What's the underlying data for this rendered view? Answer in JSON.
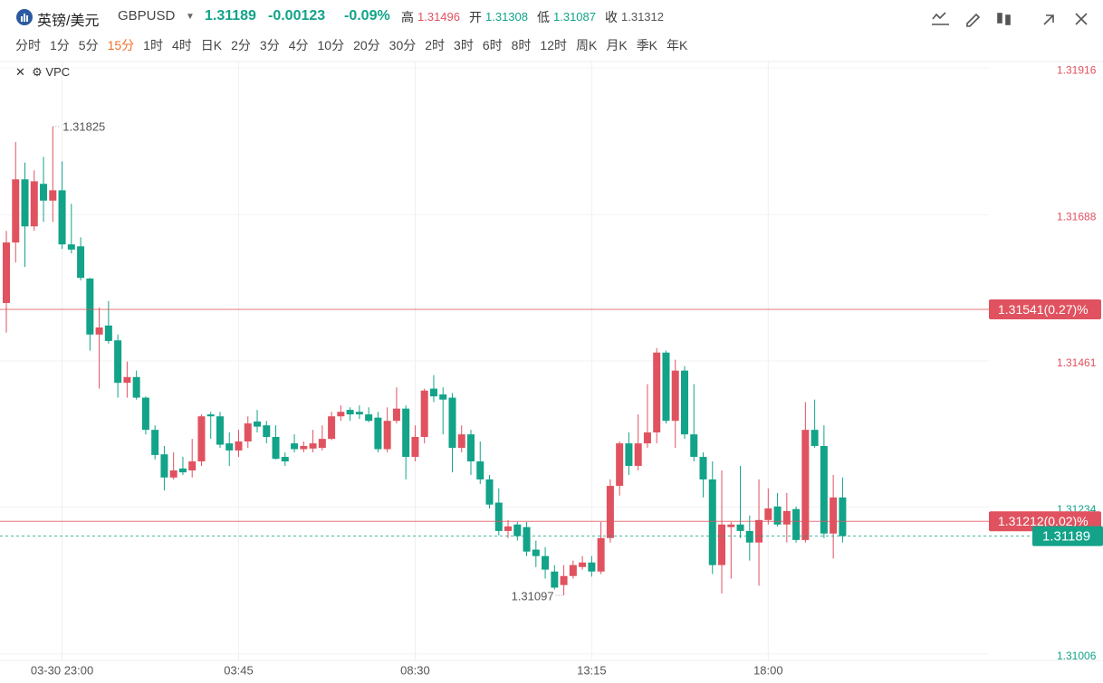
{
  "header": {
    "symbol": "英镑/美元",
    "code": "GBPUSD",
    "price": "1.31189",
    "change": "-0.00123",
    "change_pct": "-0.09%",
    "stats": [
      {
        "label": "高",
        "value": "1.31496",
        "color": "#e0525f"
      },
      {
        "label": "开",
        "value": "1.31308",
        "color": "#12a389"
      },
      {
        "label": "低",
        "value": "1.31087",
        "color": "#12a389"
      },
      {
        "label": "收",
        "value": "1.31312",
        "color": "#555555"
      }
    ]
  },
  "periods": [
    "分时",
    "1分",
    "5分",
    "15分",
    "1时",
    "4时",
    "日K",
    "2分",
    "3分",
    "4分",
    "10分",
    "20分",
    "30分",
    "2时",
    "3时",
    "6时",
    "8时",
    "12时",
    "周K",
    "月K",
    "季K",
    "年K"
  ],
  "active_period": 3,
  "indicator": "VPC",
  "chart_data": {
    "type": "candlestick",
    "up_color": "#e0525f",
    "down_color": "#12a389",
    "categories": [
      null,
      null,
      null,
      null,
      null,
      null,
      "03-30 23:00",
      null,
      null,
      null,
      null,
      null,
      null,
      null,
      null,
      null,
      null,
      null,
      null,
      null,
      null,
      null,
      null,
      null,
      null,
      "03:45",
      null,
      null,
      null,
      null,
      null,
      null,
      null,
      null,
      null,
      null,
      null,
      null,
      null,
      null,
      null,
      null,
      null,
      null,
      "08:30",
      null,
      null,
      null,
      null,
      null,
      null,
      null,
      null,
      null,
      null,
      null,
      null,
      null,
      null,
      null,
      null,
      null,
      null,
      "13:15",
      null,
      null,
      null,
      null,
      null,
      null,
      null,
      null,
      null,
      null,
      null,
      null,
      null,
      null,
      null,
      null,
      null,
      null,
      "18:00",
      null,
      null,
      null,
      null,
      null,
      null,
      null,
      null
    ],
    "open": [
      1.31551,
      1.31645,
      1.31743,
      1.3167,
      1.31736,
      1.3171,
      1.31726,
      1.31642,
      1.31639,
      1.31589,
      1.31502,
      1.31516,
      1.31493,
      1.31427,
      1.31436,
      1.31404,
      1.31354,
      1.31316,
      1.3128,
      1.31294,
      1.31291,
      1.31305,
      1.31378,
      1.31375,
      1.31333,
      1.31322,
      1.31336,
      1.31367,
      1.31361,
      1.31343,
      1.31312,
      1.31333,
      1.31324,
      1.31325,
      1.31326,
      1.3134,
      1.31375,
      1.31385,
      1.31382,
      1.31378,
      1.31373,
      1.31324,
      1.31368,
      1.31387,
      1.31312,
      1.31343,
      1.31418,
      1.31409,
      1.31404,
      1.31326,
      1.31347,
      1.31305,
      1.31277,
      1.31241,
      1.31197,
      1.31207,
      1.31203,
      1.31168,
      1.31158,
      1.31134,
      1.31113,
      1.31127,
      1.31141,
      1.31148,
      1.31134,
      1.31186,
      1.31267,
      1.31333,
      1.31298,
      1.31333,
      1.3135,
      1.31474,
      1.31368,
      1.31446,
      1.31347,
      1.31312,
      1.31277,
      1.31144,
      1.31203,
      1.31207,
      1.31197,
      1.31179,
      1.31214,
      1.31235,
      1.31207,
      1.31231,
      1.31183,
      1.31354,
      1.31329,
      1.31193,
      1.31249
    ],
    "high": [
      1.31663,
      1.31801,
      1.31769,
      1.31757,
      1.31778,
      1.31825,
      1.31771,
      1.31705,
      1.31653,
      1.3159,
      1.31544,
      1.31554,
      1.31502,
      1.3146,
      1.31446,
      1.31406,
      1.31361,
      1.31329,
      1.31319,
      1.31312,
      1.3134,
      1.31378,
      1.31382,
      1.31382,
      1.3135,
      1.31354,
      1.31375,
      1.31385,
      1.31368,
      1.31361,
      1.31319,
      1.31347,
      1.31336,
      1.31354,
      1.31361,
      1.31382,
      1.31392,
      1.31389,
      1.31392,
      1.31389,
      1.31382,
      1.31389,
      1.3142,
      1.31392,
      1.31361,
      1.31418,
      1.31439,
      1.3142,
      1.31411,
      1.31361,
      1.31354,
      1.31336,
      1.31284,
      1.31263,
      1.31214,
      1.31211,
      1.31211,
      1.31182,
      1.31172,
      1.31144,
      1.31144,
      1.31151,
      1.31158,
      1.31158,
      1.31211,
      1.31277,
      1.31336,
      1.3135,
      1.31378,
      1.31425,
      1.31481,
      1.31477,
      1.31463,
      1.31453,
      1.31425,
      1.31319,
      1.31305,
      1.31291,
      1.31211,
      1.31298,
      1.31221,
      1.31277,
      1.31263,
      1.31256,
      1.31256,
      1.31235,
      1.31397,
      1.31401,
      1.31361,
      1.31284,
      1.3128
    ],
    "low": [
      1.31505,
      1.31614,
      1.31607,
      1.31663,
      1.31677,
      1.31677,
      1.31635,
      1.31628,
      1.31586,
      1.31477,
      1.31418,
      1.31488,
      1.31404,
      1.31404,
      1.31401,
      1.31347,
      1.31308,
      1.3126,
      1.31277,
      1.31284,
      1.3128,
      1.31298,
      1.3134,
      1.31326,
      1.31298,
      1.31312,
      1.31326,
      1.3135,
      1.31333,
      1.31308,
      1.31298,
      1.31319,
      1.31319,
      1.31319,
      1.31322,
      1.31338,
      1.31368,
      1.31368,
      1.31371,
      1.31366,
      1.31319,
      1.31319,
      1.31364,
      1.31277,
      1.31305,
      1.31333,
      1.31397,
      1.31347,
      1.31288,
      1.31319,
      1.31284,
      1.3127,
      1.31232,
      1.3119,
      1.31186,
      1.31182,
      1.31158,
      1.31141,
      1.31123,
      1.31106,
      1.31097,
      1.31123,
      1.31137,
      1.31126,
      1.3113,
      1.31179,
      1.31252,
      1.31284,
      1.31291,
      1.31326,
      1.31333,
      1.31364,
      1.31326,
      1.3134,
      1.31305,
      1.31249,
      1.3113,
      1.311,
      1.31123,
      1.31186,
      1.31151,
      1.31112,
      1.31207,
      1.31204,
      1.31179,
      1.31179,
      1.31179,
      1.31326,
      1.31186,
      1.31154,
      1.31179
    ],
    "close": [
      1.31645,
      1.31743,
      1.3167,
      1.3174,
      1.3171,
      1.31726,
      1.31642,
      1.31634,
      1.3159,
      1.31502,
      1.31513,
      1.31492,
      1.31427,
      1.31436,
      1.31404,
      1.31354,
      1.31315,
      1.3128,
      1.31291,
      1.31288,
      1.31305,
      1.31375,
      1.31375,
      1.31331,
      1.31322,
      1.31336,
      1.31364,
      1.31359,
      1.31343,
      1.31309,
      1.31305,
      1.31324,
      1.31329,
      1.31333,
      1.3134,
      1.31375,
      1.31382,
      1.31378,
      1.31378,
      1.31368,
      1.31324,
      1.31368,
      1.31387,
      1.31312,
      1.31343,
      1.31415,
      1.31406,
      1.31401,
      1.31326,
      1.31347,
      1.31305,
      1.31277,
      1.31238,
      1.31197,
      1.31204,
      1.31189,
      1.31165,
      1.31158,
      1.31137,
      1.31109,
      1.31127,
      1.31144,
      1.31148,
      1.31134,
      1.31186,
      1.31267,
      1.31333,
      1.31298,
      1.31333,
      1.3135,
      1.31474,
      1.31368,
      1.31446,
      1.31347,
      1.31312,
      1.31277,
      1.31144,
      1.31207,
      1.31207,
      1.31197,
      1.31179,
      1.31214,
      1.31232,
      1.31207,
      1.31228,
      1.31183,
      1.31354,
      1.31329,
      1.31193,
      1.31249,
      1.31189
    ],
    "ylim": [
      1.30996,
      1.31926
    ],
    "yticks": [
      1.31006,
      1.31234,
      1.31461,
      1.31688,
      1.31916
    ],
    "ytick_colors": [
      "#12a389",
      "#12a389",
      "#e0525f",
      "#e0525f",
      "#e0525f"
    ],
    "grid": true,
    "levels": [
      {
        "value": 1.31541,
        "label": "1.31541(0.27)%",
        "color": "#e0525f",
        "dashed": false
      },
      {
        "value": 1.31212,
        "label": "1.31212(0.02)%",
        "color": "#e0525f",
        "dashed": false
      },
      {
        "value": 1.31189,
        "label": "1.31189",
        "color": "#12a389",
        "dashed": true
      }
    ]
  }
}
